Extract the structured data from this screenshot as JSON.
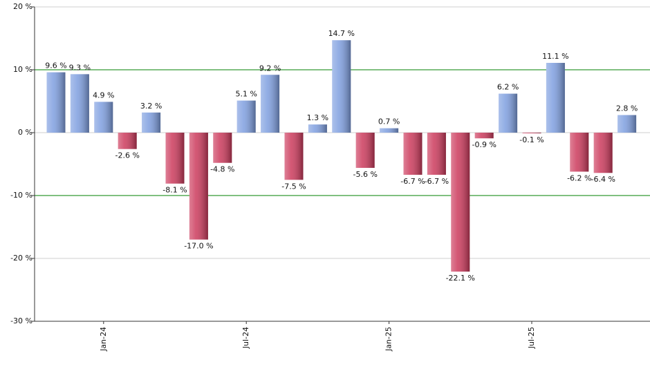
{
  "chart_data": {
    "type": "bar",
    "categories": [
      null,
      null,
      "Jan-24",
      null,
      null,
      null,
      null,
      null,
      "Jul-24",
      null,
      null,
      null,
      null,
      null,
      "Jan-25",
      null,
      null,
      null,
      null,
      null,
      "Jul-25",
      null,
      null,
      null,
      null
    ],
    "values": [
      9.6,
      9.3,
      4.9,
      -2.6,
      3.2,
      -8.1,
      -17.0,
      -4.8,
      5.1,
      9.2,
      -7.5,
      1.3,
      14.7,
      -5.6,
      0.7,
      -6.7,
      -6.7,
      -22.1,
      -0.9,
      6.2,
      -0.1,
      11.1,
      -6.2,
      -6.4,
      2.8
    ],
    "value_labels": [
      "9.6 %",
      "9.3 %",
      "4.9 %",
      "-2.6 %",
      "3.2 %",
      "-8.1 %",
      "-17.0 %",
      "-4.8 %",
      "5.1 %",
      "9.2 %",
      "-7.5 %",
      "1.3 %",
      "14.7 %",
      "-5.6 %",
      "0.7 %",
      "-6.7 %",
      "-6.7 %",
      "-22.1 %",
      "-0.9 %",
      "6.2 %",
      "-0.1 %",
      "11.1 %",
      "-6.2 %",
      "-6.4 %",
      "2.8 %"
    ],
    "positive_color": "#7f9fe0",
    "negative_color": "#cc3a5c",
    "ylim": [
      -30,
      20
    ],
    "yticks": [
      {
        "value": -30,
        "label": "-30 %"
      },
      {
        "value": -20,
        "label": "-20 %"
      },
      {
        "value": -10,
        "label": "-10 %"
      },
      {
        "value": 0,
        "label": "0 %"
      },
      {
        "value": 10,
        "label": "10 %"
      },
      {
        "value": 20,
        "label": "20 %"
      }
    ],
    "grid": true,
    "reference_lines": [
      10,
      -10
    ],
    "reference_color": "#008000"
  }
}
